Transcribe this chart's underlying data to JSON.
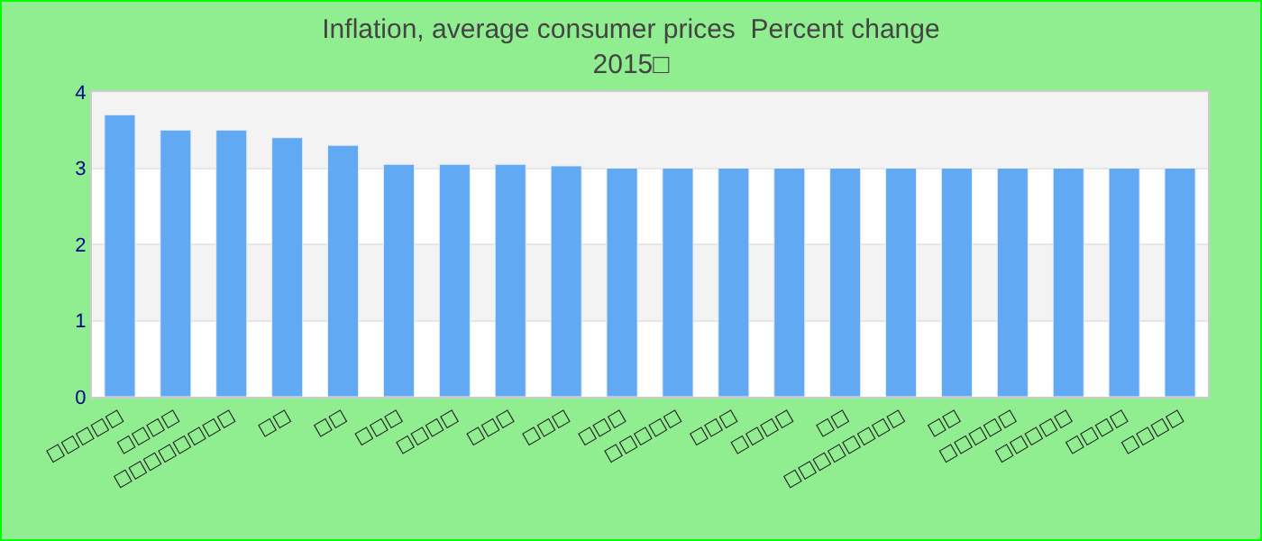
{
  "chart_data": {
    "type": "bar",
    "title": "Inflation, average consumer prices  Percent change",
    "subtitle": "2015□",
    "categories": [
      "□□□□□",
      "□□□□",
      "□□□□□□□□",
      "□□",
      "□□",
      "□□□",
      "□□□□",
      "□□□",
      "□□□",
      "□□□",
      "□□□□□",
      "□□□",
      "□□□□",
      "□□",
      "□□□□□□□□",
      "□□",
      "□□□□□",
      "□□□□□",
      "□□□□",
      "□□□□"
    ],
    "values": [
      3.7,
      3.5,
      3.5,
      3.4,
      3.3,
      3.05,
      3.05,
      3.05,
      3.03,
      3.0,
      3.0,
      3.0,
      3.0,
      3.0,
      3.0,
      3.0,
      3.0,
      3.0,
      3.0,
      3.0
    ],
    "color": "#62a9f4",
    "ylim": [
      0,
      4
    ],
    "yticks": [
      0,
      1,
      2,
      3,
      4
    ],
    "grid": "y"
  }
}
